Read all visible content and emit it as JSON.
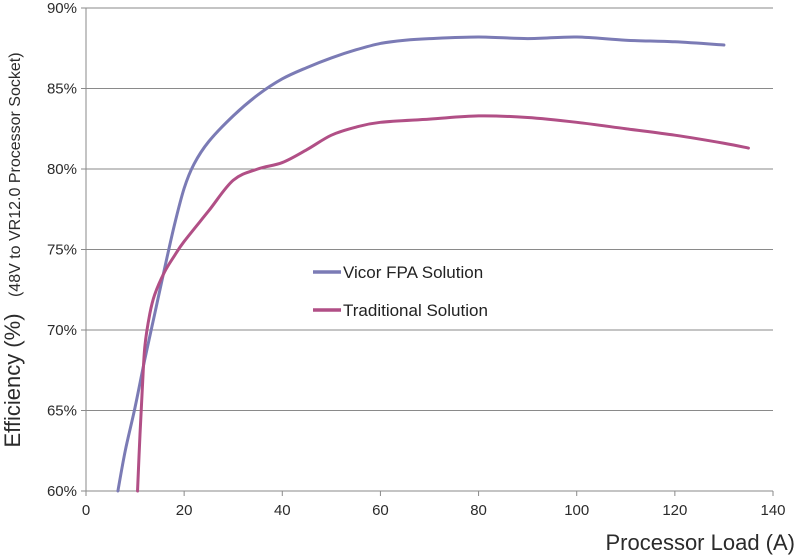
{
  "chart_data": {
    "type": "line",
    "xlabel": "Processor Load (A)",
    "ylabel_main": "Efficiency (%)",
    "ylabel_sub": "(48V to VR12.0 Processor Socket)",
    "xlim": [
      0,
      140
    ],
    "ylim": [
      60,
      90
    ],
    "xticks": [
      0,
      20,
      40,
      60,
      80,
      100,
      120,
      140
    ],
    "yticks": [
      60,
      65,
      70,
      75,
      80,
      85,
      90
    ],
    "xtick_labels": [
      "0",
      "20",
      "40",
      "60",
      "80",
      "100",
      "120",
      "140"
    ],
    "ytick_labels": [
      "60%",
      "65%",
      "70%",
      "75%",
      "80%",
      "85%",
      "90%"
    ],
    "grid": "horizontal",
    "legend_position": "center",
    "series": [
      {
        "name": "Vicor FPA Solution",
        "color": "#7b7bb5",
        "x": [
          6.5,
          8,
          10,
          12,
          14,
          16,
          18,
          20,
          22,
          25,
          30,
          35,
          40,
          45,
          50,
          55,
          60,
          65,
          70,
          80,
          90,
          100,
          110,
          120,
          130
        ],
        "y": [
          60,
          62.5,
          65.2,
          68.2,
          71,
          73.8,
          76.5,
          78.8,
          80.3,
          81.7,
          83.3,
          84.6,
          85.6,
          86.3,
          86.9,
          87.4,
          87.8,
          88.0,
          88.1,
          88.2,
          88.1,
          88.2,
          88.0,
          87.9,
          87.7
        ]
      },
      {
        "name": "Traditional Solution",
        "color": "#b14f86",
        "x": [
          10.5,
          11,
          11.5,
          12,
          13,
          14,
          16,
          18,
          20,
          25,
          30,
          35,
          40,
          45,
          50,
          55,
          60,
          70,
          80,
          90,
          100,
          110,
          120,
          130,
          135
        ],
        "y": [
          60,
          63.5,
          66.5,
          69,
          71,
          72.2,
          73.6,
          74.6,
          75.5,
          77.4,
          79.3,
          80,
          80.4,
          81.2,
          82.1,
          82.6,
          82.9,
          83.1,
          83.3,
          83.2,
          82.9,
          82.5,
          82.1,
          81.6,
          81.3
        ]
      }
    ]
  }
}
